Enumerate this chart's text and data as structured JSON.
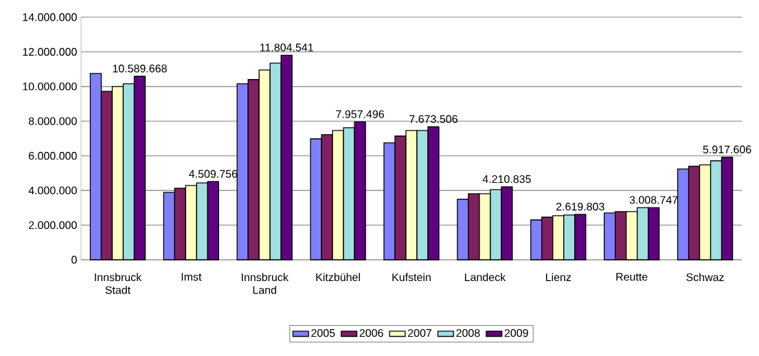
{
  "chart_data": {
    "type": "bar",
    "categories": [
      "Innsbruck Stadt",
      "Imst",
      "Innsbruck Land",
      "Kitzbühel",
      "Kufstein",
      "Landeck",
      "Lienz",
      "Reutte",
      "Schwaz"
    ],
    "series": [
      {
        "name": "2005",
        "color": "#8080ff",
        "values": [
          10750000,
          3890000,
          10160000,
          6980000,
          6750000,
          3490000,
          2300000,
          2700000,
          5240000
        ]
      },
      {
        "name": "2006",
        "color": "#802060",
        "values": [
          9720000,
          4130000,
          10400000,
          7220000,
          7140000,
          3810000,
          2460000,
          2780000,
          5400000
        ]
      },
      {
        "name": "2007",
        "color": "#ffffc0",
        "values": [
          10000000,
          4290000,
          10950000,
          7460000,
          7460000,
          3810000,
          2540000,
          2780000,
          5480000
        ]
      },
      {
        "name": "2008",
        "color": "#a0e0e0",
        "values": [
          10160000,
          4440000,
          11350000,
          7620000,
          7460000,
          4050000,
          2580000,
          3010000,
          5710000
        ]
      },
      {
        "name": "2009",
        "color": "#600080",
        "values": [
          10589668,
          4509756,
          11804541,
          7957496,
          7673506,
          4210835,
          2619803,
          3008747,
          5917606
        ],
        "value_labels": [
          "10.589.668",
          "4.509.756",
          "11.804.541",
          "7.957.496",
          "7.673.506",
          "4.210.835",
          "2.619.803",
          "3.008.747",
          "5.917.606"
        ]
      }
    ],
    "ylim": [
      0,
      14000000
    ],
    "yticks": [
      {
        "value": 0,
        "label": "0"
      },
      {
        "value": 2000000,
        "label": "2.000.000"
      },
      {
        "value": 4000000,
        "label": "4.000.000"
      },
      {
        "value": 6000000,
        "label": "6.000.000"
      },
      {
        "value": 8000000,
        "label": "8.000.000"
      },
      {
        "value": 10000000,
        "label": "10.000.000"
      },
      {
        "value": 12000000,
        "label": "12.000.000"
      },
      {
        "value": 14000000,
        "label": "14.000.000"
      }
    ],
    "grid": "y",
    "legend": "bottom"
  }
}
